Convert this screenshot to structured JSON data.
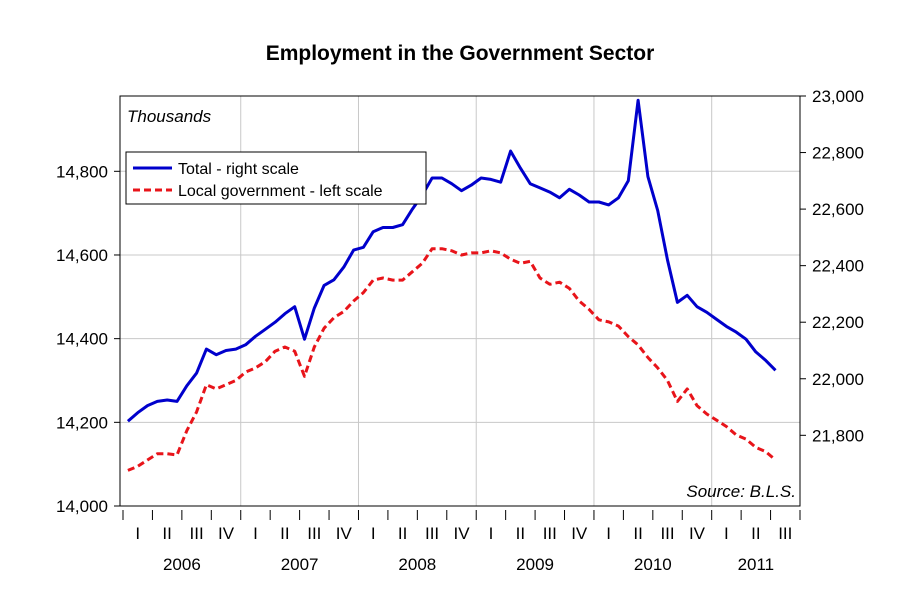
{
  "chart_data": {
    "type": "line",
    "title": "Employment in the Government Sector",
    "unit_label": "Thousands",
    "source": "Source: B.L.S.",
    "x_start": "2006-01",
    "quarter_labels": [
      "I",
      "II",
      "III",
      "IV",
      "I",
      "II",
      "III",
      "IV",
      "I",
      "II",
      "III",
      "IV",
      "I",
      "II",
      "III",
      "IV",
      "I",
      "II",
      "III",
      "IV",
      "I",
      "II",
      "III"
    ],
    "year_labels": [
      "2006",
      "2007",
      "2008",
      "2009",
      "2010",
      "2011"
    ],
    "y_left": {
      "range": [
        14000,
        14980
      ],
      "ticks": [
        "14,000",
        "14,200",
        "14,400",
        "14,600",
        "14,800"
      ]
    },
    "y_right": {
      "range": [
        21550,
        23000
      ],
      "ticks": [
        "21,800",
        "22,000",
        "22,200",
        "22,400",
        "22,600",
        "22,800",
        "23,000"
      ]
    },
    "legend": {
      "placement": "top-left"
    },
    "grid": true,
    "series": [
      {
        "name": "Total - right scale",
        "axis": "right",
        "color": "#0000CC",
        "style": "solid",
        "values": [
          21850,
          21880,
          21905,
          21920,
          21925,
          21920,
          21975,
          22020,
          22105,
          22085,
          22100,
          22105,
          22120,
          22150,
          22175,
          22200,
          22230,
          22255,
          22140,
          22250,
          22330,
          22350,
          22395,
          22455,
          22465,
          22520,
          22535,
          22535,
          22545,
          22600,
          22650,
          22710,
          22710,
          22690,
          22665,
          22685,
          22710,
          22705,
          22695,
          22805,
          22745,
          22690,
          22675,
          22660,
          22640,
          22670,
          22650,
          22625,
          22625,
          22615,
          22640,
          22700,
          22985,
          22715,
          22595,
          22420,
          22270,
          22295,
          22255,
          22235,
          22210,
          22185,
          22165,
          22140,
          22095,
          22065,
          22030
        ]
      },
      {
        "name": "Local government - left scale",
        "axis": "left",
        "color": "#E8141A",
        "style": "dashed",
        "values": [
          14085,
          14095,
          14110,
          14125,
          14125,
          14122,
          14180,
          14225,
          14290,
          14280,
          14290,
          14300,
          14320,
          14330,
          14345,
          14370,
          14380,
          14370,
          14310,
          14380,
          14425,
          14450,
          14465,
          14490,
          14510,
          14540,
          14545,
          14540,
          14540,
          14560,
          14580,
          14615,
          14615,
          14610,
          14600,
          14605,
          14605,
          14610,
          14605,
          14590,
          14580,
          14585,
          14545,
          14530,
          14535,
          14520,
          14490,
          14470,
          14445,
          14440,
          14430,
          14405,
          14385,
          14355,
          14330,
          14300,
          14250,
          14280,
          14240,
          14220,
          14205,
          14190,
          14170,
          14160,
          14140,
          14130,
          14110
        ]
      }
    ]
  }
}
